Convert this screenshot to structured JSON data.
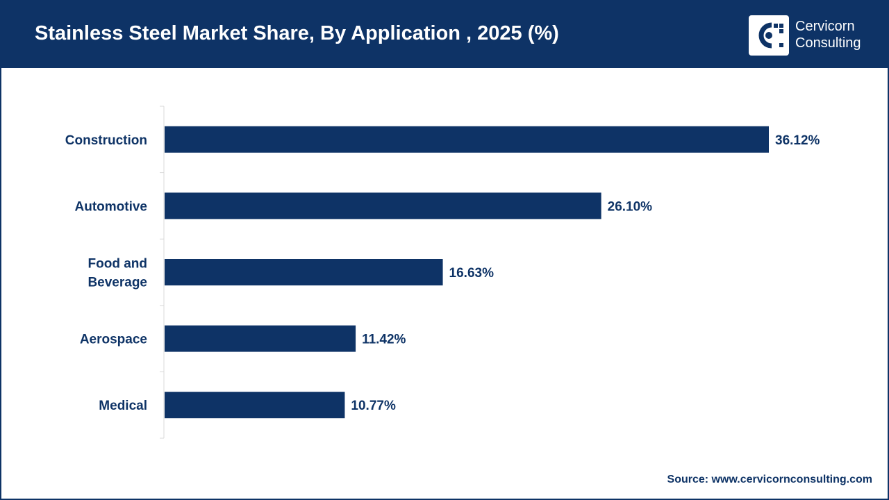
{
  "header": {
    "title": "Stainless Steel Market Share, By Application , 2025 (%)"
  },
  "logo": {
    "line1": "Cervicorn",
    "line2": "Consulting",
    "icon": "cervicorn-logo-icon"
  },
  "colors": {
    "header_bg": "#0e3366",
    "bar": "#0e3366",
    "text": "#0e3366"
  },
  "chart_data": {
    "type": "bar",
    "orientation": "horizontal",
    "title": "Stainless Steel Market Share, By Application , 2025 (%)",
    "categories": [
      [
        "Construction"
      ],
      [
        "Automotive"
      ],
      [
        "Food and",
        "Beverage"
      ],
      [
        "Aerospace"
      ],
      [
        "Medical"
      ]
    ],
    "values": [
      36.12,
      26.1,
      16.63,
      11.42,
      10.77
    ],
    "value_labels": [
      "36.12%",
      "26.10%",
      "16.63%",
      "11.42%",
      "10.77%"
    ],
    "xlim": [
      0,
      36.12
    ],
    "grid": false,
    "legend": "none"
  },
  "source": "Source: www.cervicornconsulting.com"
}
